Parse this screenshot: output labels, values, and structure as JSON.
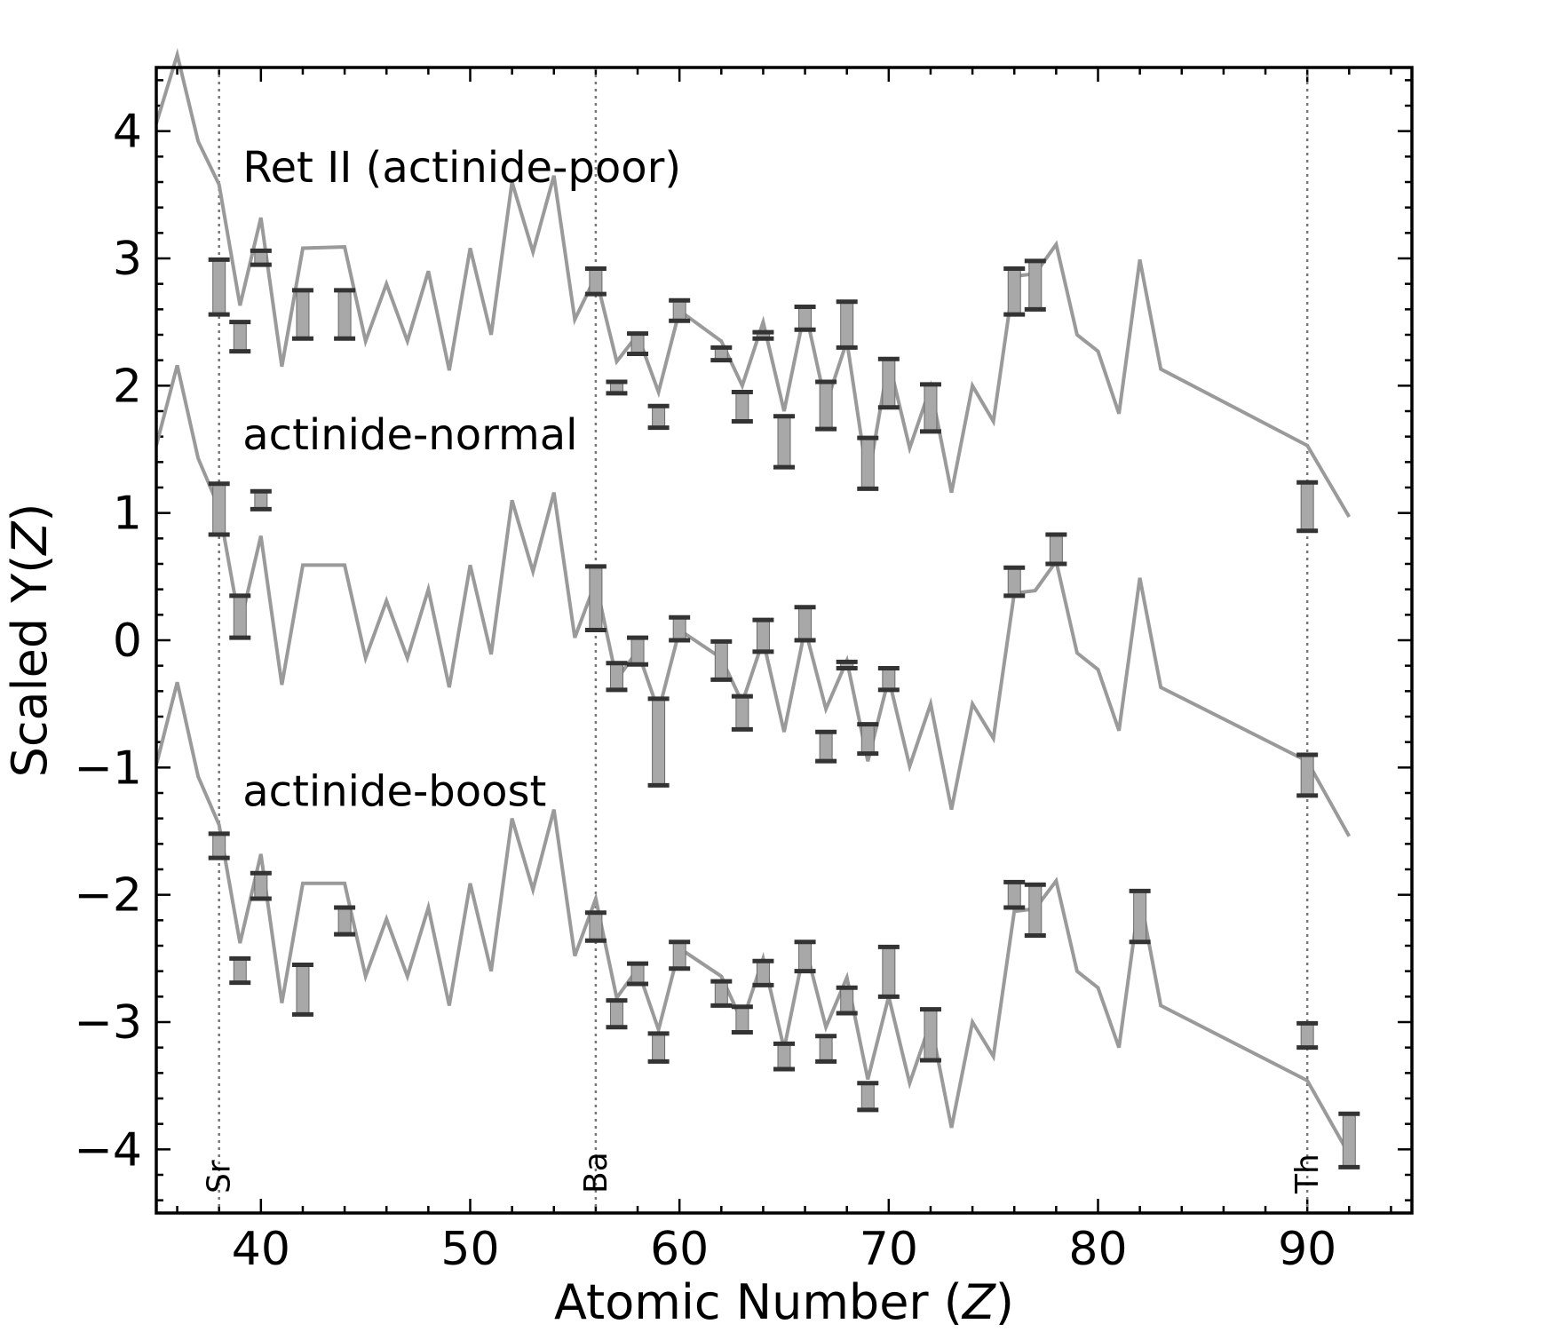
{
  "chart_data": {
    "type": "line",
    "title": "",
    "xlabel_main": "Atomic Number (",
    "xlabel_var": "Z",
    "xlabel_end": ")",
    "ylabel_main": "Scaled Y(",
    "ylabel_var": "Z",
    "ylabel_end": ")",
    "xlim": [
      35,
      95
    ],
    "ylim": [
      -4.5,
      4.5
    ],
    "xticks": [
      40,
      50,
      60,
      70,
      80,
      90
    ],
    "yticks": [
      {
        "value": 4,
        "label": "4"
      },
      {
        "value": 3,
        "label": "3"
      },
      {
        "value": 2,
        "label": "2"
      },
      {
        "value": 1,
        "label": "1"
      },
      {
        "value": 0,
        "label": "0"
      },
      {
        "value": -1,
        "label": "−1"
      },
      {
        "value": -2,
        "label": "−2"
      },
      {
        "value": -3,
        "label": "−3"
      },
      {
        "value": -4,
        "label": "−4"
      }
    ],
    "reference_lines": [
      {
        "x": 38,
        "label": "Sr"
      },
      {
        "x": 56,
        "label": "Ba"
      },
      {
        "x": 90,
        "label": "Th"
      }
    ],
    "series": [
      {
        "name": "Ret II (actinide-poor)",
        "label_at": [
          39,
          3.6
        ],
        "model": [
          [
            35,
            4.06
          ],
          [
            36,
            4.6
          ],
          [
            37,
            3.92
          ],
          [
            38,
            3.58
          ],
          [
            39,
            2.63
          ],
          [
            40,
            3.32
          ],
          [
            41,
            2.15
          ],
          [
            42,
            3.08
          ],
          [
            44,
            3.09
          ],
          [
            45,
            2.35
          ],
          [
            46,
            2.8
          ],
          [
            47,
            2.35
          ],
          [
            48,
            2.9
          ],
          [
            49,
            2.12
          ],
          [
            50,
            3.08
          ],
          [
            51,
            2.4
          ],
          [
            52,
            3.6
          ],
          [
            53,
            3.05
          ],
          [
            54,
            3.65
          ],
          [
            55,
            2.52
          ],
          [
            56,
            2.86
          ],
          [
            57,
            2.19
          ],
          [
            58,
            2.4
          ],
          [
            59,
            1.95
          ],
          [
            60,
            2.59
          ],
          [
            62,
            2.35
          ],
          [
            63,
            2.0
          ],
          [
            64,
            2.5
          ],
          [
            65,
            1.8
          ],
          [
            66,
            2.6
          ],
          [
            67,
            1.85
          ],
          [
            68,
            2.35
          ],
          [
            69,
            1.25
          ],
          [
            70,
            2.2
          ],
          [
            71,
            1.51
          ],
          [
            72,
            1.99
          ],
          [
            73,
            1.16
          ],
          [
            74,
            2.0
          ],
          [
            75,
            1.72
          ],
          [
            76,
            2.86
          ],
          [
            77,
            2.88
          ],
          [
            78,
            3.11
          ],
          [
            79,
            2.4
          ],
          [
            80,
            2.27
          ],
          [
            81,
            1.78
          ],
          [
            82,
            2.99
          ],
          [
            83,
            2.13
          ],
          [
            90,
            1.53
          ],
          [
            92,
            0.97
          ]
        ],
        "obs": [
          [
            38,
            2.56,
            2.99
          ],
          [
            39,
            2.27,
            2.5
          ],
          [
            40,
            2.95,
            3.06
          ],
          [
            42,
            2.37,
            2.75
          ],
          [
            44,
            2.37,
            2.75
          ],
          [
            56,
            2.72,
            2.92
          ],
          [
            57,
            1.94,
            2.03
          ],
          [
            58,
            2.25,
            2.41
          ],
          [
            59,
            1.67,
            1.84
          ],
          [
            60,
            2.51,
            2.67
          ],
          [
            62,
            2.2,
            2.3
          ],
          [
            63,
            1.72,
            1.95
          ],
          [
            64,
            2.37,
            2.42
          ],
          [
            65,
            1.36,
            1.76
          ],
          [
            66,
            2.44,
            2.62
          ],
          [
            67,
            1.66,
            2.03
          ],
          [
            68,
            2.3,
            2.66
          ],
          [
            69,
            1.19,
            1.59
          ],
          [
            70,
            1.83,
            2.21
          ],
          [
            72,
            1.64,
            2.01
          ],
          [
            76,
            2.56,
            2.92
          ],
          [
            77,
            2.6,
            2.98
          ],
          [
            90,
            0.86,
            1.24
          ]
        ]
      },
      {
        "name": "actinide-normal",
        "label_at": [
          39,
          1.5
        ],
        "model": [
          [
            35,
            1.53
          ],
          [
            36,
            2.16
          ],
          [
            37,
            1.43
          ],
          [
            38,
            1.04
          ],
          [
            39,
            0.12
          ],
          [
            40,
            0.82
          ],
          [
            41,
            -0.35
          ],
          [
            42,
            0.59
          ],
          [
            44,
            0.59
          ],
          [
            45,
            -0.14
          ],
          [
            46,
            0.31
          ],
          [
            47,
            -0.14
          ],
          [
            48,
            0.4
          ],
          [
            49,
            -0.37
          ],
          [
            50,
            0.59
          ],
          [
            51,
            -0.11
          ],
          [
            52,
            1.1
          ],
          [
            53,
            0.54
          ],
          [
            54,
            1.16
          ],
          [
            55,
            0.02
          ],
          [
            56,
            0.46
          ],
          [
            57,
            -0.31
          ],
          [
            58,
            -0.08
          ],
          [
            59,
            -0.56
          ],
          [
            60,
            0.08
          ],
          [
            62,
            -0.14
          ],
          [
            63,
            -0.49
          ],
          [
            64,
            0.0
          ],
          [
            65,
            -0.72
          ],
          [
            66,
            0.09
          ],
          [
            67,
            -0.54
          ],
          [
            68,
            -0.16
          ],
          [
            69,
            -0.95
          ],
          [
            70,
            -0.3
          ],
          [
            71,
            -0.99
          ],
          [
            72,
            -0.5
          ],
          [
            73,
            -1.33
          ],
          [
            74,
            -0.5
          ],
          [
            75,
            -0.77
          ],
          [
            76,
            0.37
          ],
          [
            77,
            0.39
          ],
          [
            78,
            0.62
          ],
          [
            79,
            -0.1
          ],
          [
            80,
            -0.23
          ],
          [
            81,
            -0.71
          ],
          [
            82,
            0.49
          ],
          [
            83,
            -0.37
          ],
          [
            90,
            -0.95
          ],
          [
            92,
            -1.54
          ]
        ]
      },
      {
        "name": "actinide-boost",
        "label_at": [
          39,
          -1.3
        ],
        "model": [
          [
            35,
            -0.98
          ],
          [
            36,
            -0.33
          ],
          [
            37,
            -1.07
          ],
          [
            38,
            -1.45
          ],
          [
            39,
            -2.38
          ],
          [
            40,
            -1.68
          ],
          [
            41,
            -2.85
          ],
          [
            42,
            -1.91
          ],
          [
            44,
            -1.91
          ],
          [
            45,
            -2.64
          ],
          [
            46,
            -2.19
          ],
          [
            47,
            -2.64
          ],
          [
            48,
            -2.1
          ],
          [
            49,
            -2.87
          ],
          [
            50,
            -1.91
          ],
          [
            51,
            -2.6
          ],
          [
            52,
            -1.4
          ],
          [
            53,
            -1.96
          ],
          [
            54,
            -1.33
          ],
          [
            55,
            -2.48
          ],
          [
            56,
            -2.03
          ],
          [
            57,
            -2.81
          ],
          [
            58,
            -2.58
          ],
          [
            59,
            -3.06
          ],
          [
            60,
            -2.42
          ],
          [
            62,
            -2.64
          ],
          [
            63,
            -3.0
          ],
          [
            64,
            -2.5
          ],
          [
            65,
            -3.21
          ],
          [
            66,
            -2.4
          ],
          [
            67,
            -3.04
          ],
          [
            68,
            -2.65
          ],
          [
            69,
            -3.45
          ],
          [
            70,
            -2.8
          ],
          [
            71,
            -3.48
          ],
          [
            72,
            -3.0
          ],
          [
            73,
            -3.83
          ],
          [
            74,
            -3.0
          ],
          [
            75,
            -3.27
          ],
          [
            76,
            -2.13
          ],
          [
            77,
            -2.11
          ],
          [
            78,
            -1.89
          ],
          [
            79,
            -2.6
          ],
          [
            80,
            -2.73
          ],
          [
            81,
            -3.2
          ],
          [
            82,
            -2.0
          ],
          [
            83,
            -2.87
          ],
          [
            90,
            -3.46
          ],
          [
            92,
            -4.04
          ]
        ]
      }
    ],
    "obs_middle": [
      [
        38,
        0.83,
        1.23
      ],
      [
        40,
        1.03,
        1.17
      ],
      [
        39,
        0.02,
        0.35
      ],
      [
        56,
        0.08,
        0.58
      ],
      [
        57,
        -0.39,
        -0.18
      ],
      [
        58,
        -0.19,
        0.02
      ],
      [
        59,
        -1.14,
        -0.46
      ],
      [
        60,
        0.0,
        0.18
      ],
      [
        62,
        -0.31,
        -0.01
      ],
      [
        63,
        -0.7,
        -0.44
      ],
      [
        64,
        -0.09,
        0.16
      ],
      [
        66,
        0.0,
        0.26
      ],
      [
        67,
        -0.95,
        -0.72
      ],
      [
        68,
        -0.22,
        -0.17
      ],
      [
        69,
        -0.89,
        -0.66
      ],
      [
        70,
        -0.39,
        -0.22
      ],
      [
        76,
        0.35,
        0.57
      ],
      [
        78,
        0.6,
        0.83
      ],
      [
        90,
        -1.22,
        -0.9
      ]
    ],
    "obs_bottom": [
      [
        38,
        -1.71,
        -1.52
      ],
      [
        39,
        -2.69,
        -2.5
      ],
      [
        40,
        -2.03,
        -1.83
      ],
      [
        42,
        -2.94,
        -2.55
      ],
      [
        44,
        -2.31,
        -2.1
      ],
      [
        56,
        -2.36,
        -2.14
      ],
      [
        57,
        -3.04,
        -2.83
      ],
      [
        58,
        -2.7,
        -2.54
      ],
      [
        59,
        -3.31,
        -3.09
      ],
      [
        60,
        -2.58,
        -2.37
      ],
      [
        62,
        -2.87,
        -2.68
      ],
      [
        63,
        -3.08,
        -2.88
      ],
      [
        64,
        -2.71,
        -2.52
      ],
      [
        65,
        -3.37,
        -3.17
      ],
      [
        66,
        -2.6,
        -2.37
      ],
      [
        67,
        -3.31,
        -3.11
      ],
      [
        68,
        -2.93,
        -2.73
      ],
      [
        69,
        -3.69,
        -3.48
      ],
      [
        70,
        -2.8,
        -2.41
      ],
      [
        72,
        -3.3,
        -2.9
      ],
      [
        76,
        -2.1,
        -1.9
      ],
      [
        77,
        -2.32,
        -1.92
      ],
      [
        82,
        -2.37,
        -1.97
      ],
      [
        90,
        -3.2,
        -3.01
      ],
      [
        92,
        -4.14,
        -3.72
      ]
    ],
    "colors": {
      "model_line": "#9a9a9a",
      "error_bar_fill": "#a8a8a8",
      "error_bar_cap": "#333333",
      "ref_line": "#777777"
    }
  }
}
